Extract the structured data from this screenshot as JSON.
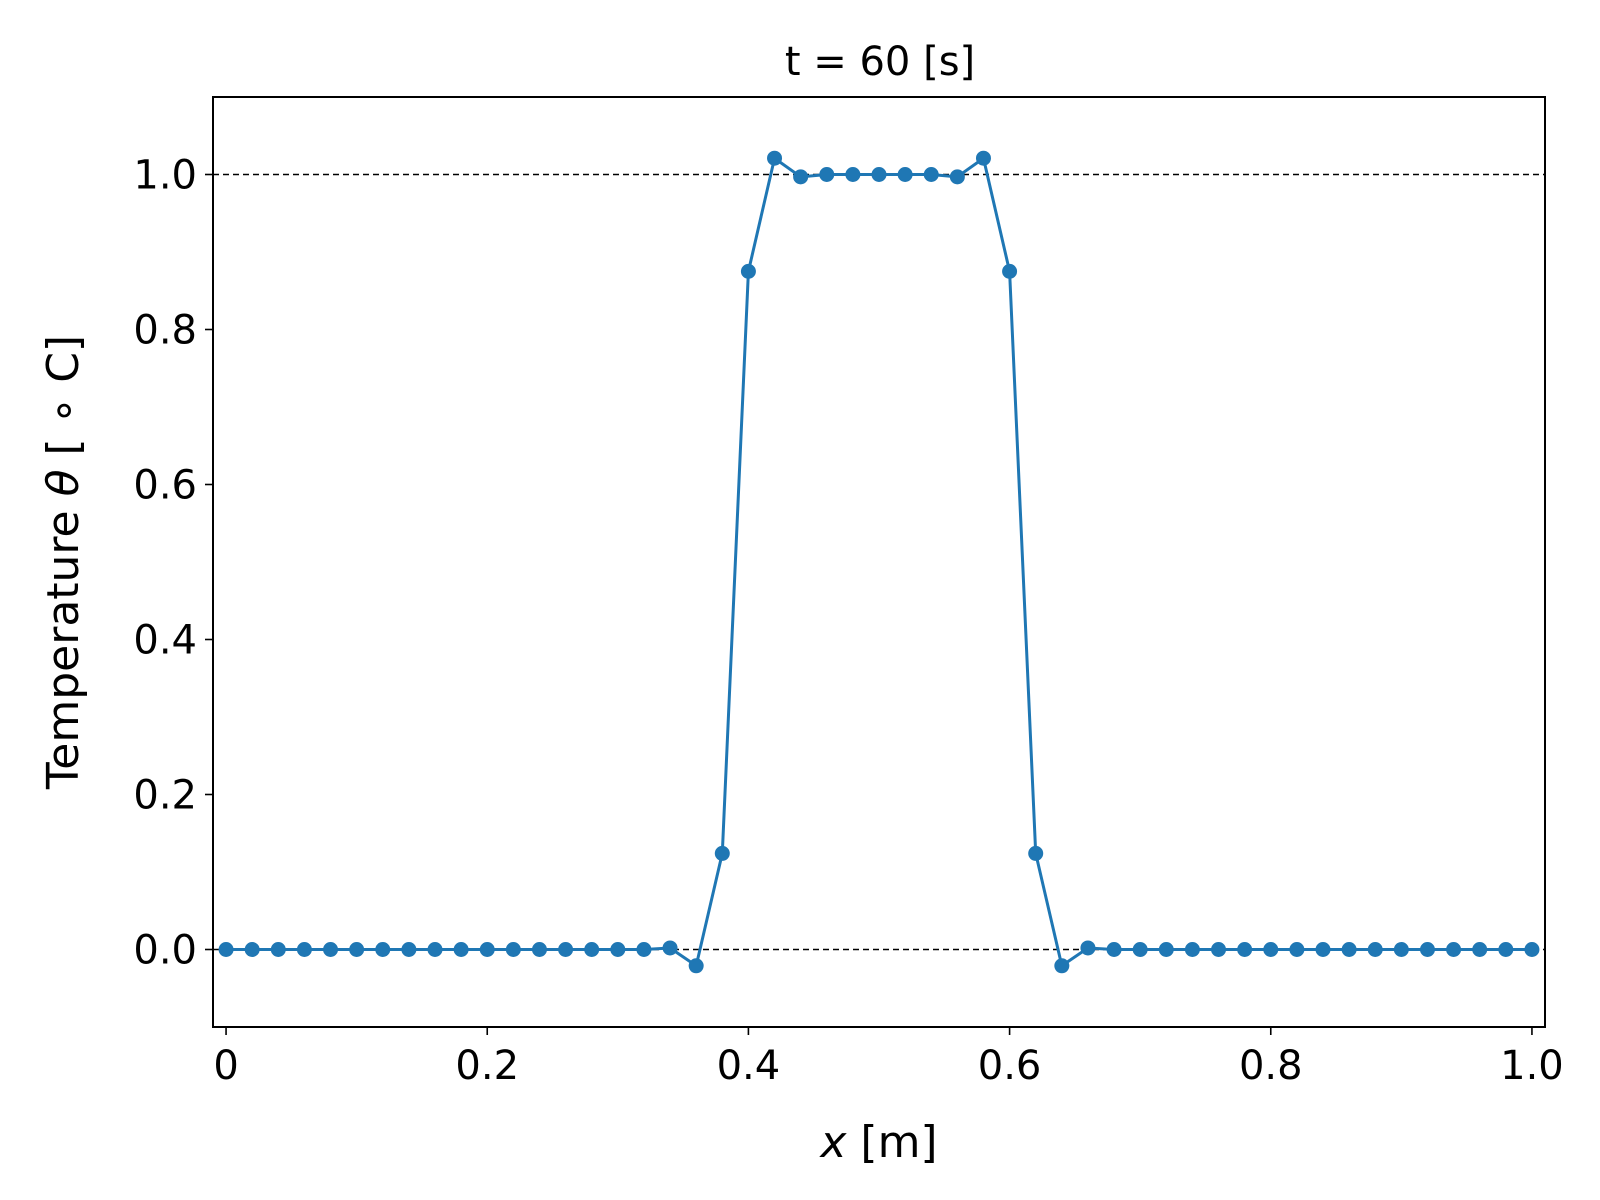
{
  "chart_data": {
    "type": "line",
    "title": "t = 60 [s]",
    "xlabel": {
      "var": "x",
      "unit": " [m]"
    },
    "ylabel": {
      "prefix": "Temperature ",
      "var": "θ",
      "suffix": " [ ∘ C]"
    },
    "xlim": [
      -0.01,
      1.01
    ],
    "ylim": [
      -0.1,
      1.1
    ],
    "xticks": [
      0,
      0.2,
      0.4,
      0.6,
      0.8,
      1.0
    ],
    "xtick_labels": [
      "0",
      "0.2",
      "0.4",
      "0.6",
      "0.8",
      "1.0"
    ],
    "yticks": [
      0.0,
      0.2,
      0.4,
      0.6,
      0.8,
      1.0
    ],
    "ytick_labels": [
      "0.0",
      "0.2",
      "0.4",
      "0.6",
      "0.8",
      "1.0"
    ],
    "reference_lines": [
      0.0,
      1.0
    ],
    "grid": false,
    "legend": "none",
    "series": [
      {
        "color": "#1f77b4",
        "marker": "circle",
        "x": [
          0.0,
          0.02,
          0.04,
          0.06,
          0.08,
          0.1,
          0.12,
          0.14,
          0.16,
          0.18,
          0.2,
          0.22,
          0.24,
          0.26,
          0.28,
          0.3,
          0.32,
          0.34,
          0.36,
          0.38,
          0.4,
          0.42,
          0.44,
          0.46,
          0.48,
          0.5,
          0.52,
          0.54,
          0.56,
          0.58,
          0.6,
          0.62,
          0.64,
          0.66,
          0.68,
          0.7,
          0.72,
          0.74,
          0.76,
          0.78,
          0.8,
          0.82,
          0.84,
          0.86,
          0.88,
          0.9,
          0.92,
          0.94,
          0.96,
          0.98,
          1.0
        ],
        "y": [
          0,
          0,
          0,
          0,
          0,
          0,
          0,
          0,
          0,
          0,
          0,
          0,
          0,
          0,
          0,
          0,
          0,
          0.002,
          -0.021,
          0.124,
          0.875,
          1.021,
          0.997,
          1.0,
          1.0,
          1.0,
          1.0,
          1.0,
          0.997,
          1.021,
          0.875,
          0.124,
          -0.021,
          0.002,
          0,
          0,
          0,
          0,
          0,
          0,
          0,
          0,
          0,
          0,
          0,
          0,
          0,
          0,
          0,
          0,
          0
        ]
      }
    ]
  }
}
